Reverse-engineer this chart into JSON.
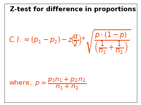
{
  "title": "Z-test for difference in proportions",
  "title_color": "#000000",
  "title_fontsize": 6.5,
  "formula_color": "#e8400a",
  "background_color": "#ffffff",
  "border_color": "#aaaaaa",
  "fig_width": 2.0,
  "fig_height": 1.5,
  "dpi": 100,
  "main_formula_fontsize": 7.0,
  "where_formula_fontsize": 6.8
}
